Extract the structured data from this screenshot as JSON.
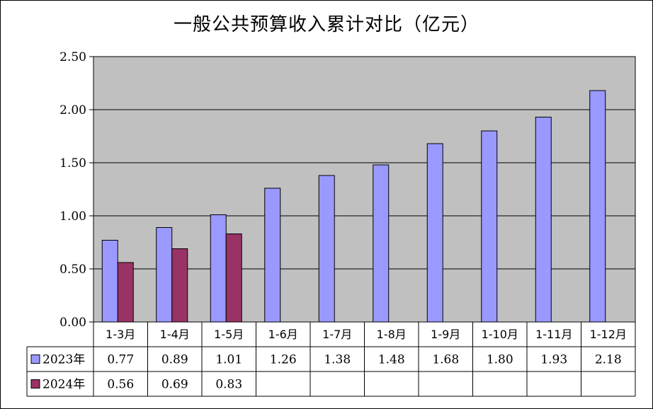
{
  "chart_data": {
    "type": "bar",
    "title": "一般公共预算收入累计对比（亿元）",
    "categories": [
      "1-3月",
      "1-4月",
      "1-5月",
      "1-6月",
      "1-7月",
      "1-8月",
      "1-9月",
      "1-10月",
      "1-11月",
      "1-12月"
    ],
    "series": [
      {
        "name": "2023年",
        "color": "#9999ff",
        "values": [
          0.77,
          0.89,
          1.01,
          1.26,
          1.38,
          1.48,
          1.68,
          1.8,
          1.93,
          2.18
        ],
        "labels": [
          "0.77",
          "0.89",
          "1.01",
          "1.26",
          "1.38",
          "1.48",
          "1.68",
          "1.80",
          "1.93",
          "2.18"
        ]
      },
      {
        "name": "2024年",
        "color": "#993366",
        "values": [
          0.56,
          0.69,
          0.83,
          null,
          null,
          null,
          null,
          null,
          null,
          null
        ],
        "labels": [
          "0.56",
          "0.69",
          "0.83",
          "",
          "",
          "",
          "",
          "",
          "",
          ""
        ]
      }
    ],
    "ylim": [
      0,
      2.5
    ],
    "yticks": [
      "0.00",
      "0.50",
      "1.00",
      "1.50",
      "2.00",
      "2.50"
    ],
    "grid": true,
    "plot_background": "#c0c0c0",
    "legend": "data-table"
  }
}
